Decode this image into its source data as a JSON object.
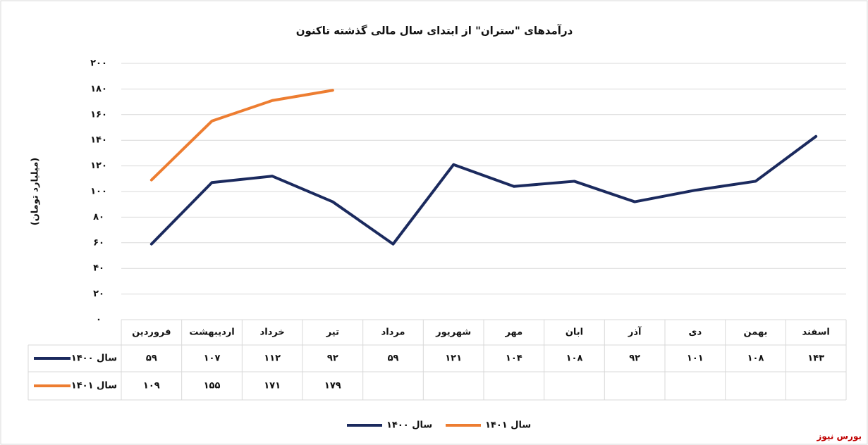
{
  "chart_data": {
    "type": "line",
    "title": "درآمدهای \"ستران\" از ابتدای سال مالی گذشته تاکنون",
    "ylabel": "(میلیارد تومان)",
    "watermark": "بورس نیوز",
    "categories": [
      "فروردین",
      "اردیبهشت",
      "خرداد",
      "تیر",
      "مرداد",
      "شهریور",
      "مهر",
      "ابان",
      "آذر",
      "دی",
      "بهمن",
      "اسفند"
    ],
    "series": [
      {
        "name": "سال ۱۴۰۰",
        "color": "#1b2a5e",
        "values": [
          59,
          107,
          112,
          92,
          59,
          121,
          104,
          108,
          92,
          101,
          108,
          143
        ],
        "value_labels": [
          "۵۹",
          "۱۰۷",
          "۱۱۲",
          "۹۲",
          "۵۹",
          "۱۲۱",
          "۱۰۴",
          "۱۰۸",
          "۹۲",
          "۱۰۱",
          "۱۰۸",
          "۱۴۳"
        ]
      },
      {
        "name": "سال ۱۴۰۱",
        "color": "#ed7d31",
        "values": [
          109,
          155,
          171,
          179,
          null,
          null,
          null,
          null,
          null,
          null,
          null,
          null
        ],
        "value_labels": [
          "۱۰۹",
          "۱۵۵",
          "۱۷۱",
          "۱۷۹",
          null,
          null,
          null,
          null,
          null,
          null,
          null,
          null
        ]
      }
    ],
    "ylim": [
      0,
      200
    ],
    "yticks": [
      {
        "value": 0,
        "label": "۰"
      },
      {
        "value": 20,
        "label": "۲۰"
      },
      {
        "value": 40,
        "label": "۴۰"
      },
      {
        "value": 60,
        "label": "۶۰"
      },
      {
        "value": 80,
        "label": "۸۰"
      },
      {
        "value": 100,
        "label": "۱۰۰"
      },
      {
        "value": 120,
        "label": "۱۲۰"
      },
      {
        "value": 140,
        "label": "۱۴۰"
      },
      {
        "value": 160,
        "label": "۱۶۰"
      },
      {
        "value": 180,
        "label": "۱۸۰"
      },
      {
        "value": 200,
        "label": "۲۰۰"
      }
    ],
    "grid": true
  }
}
